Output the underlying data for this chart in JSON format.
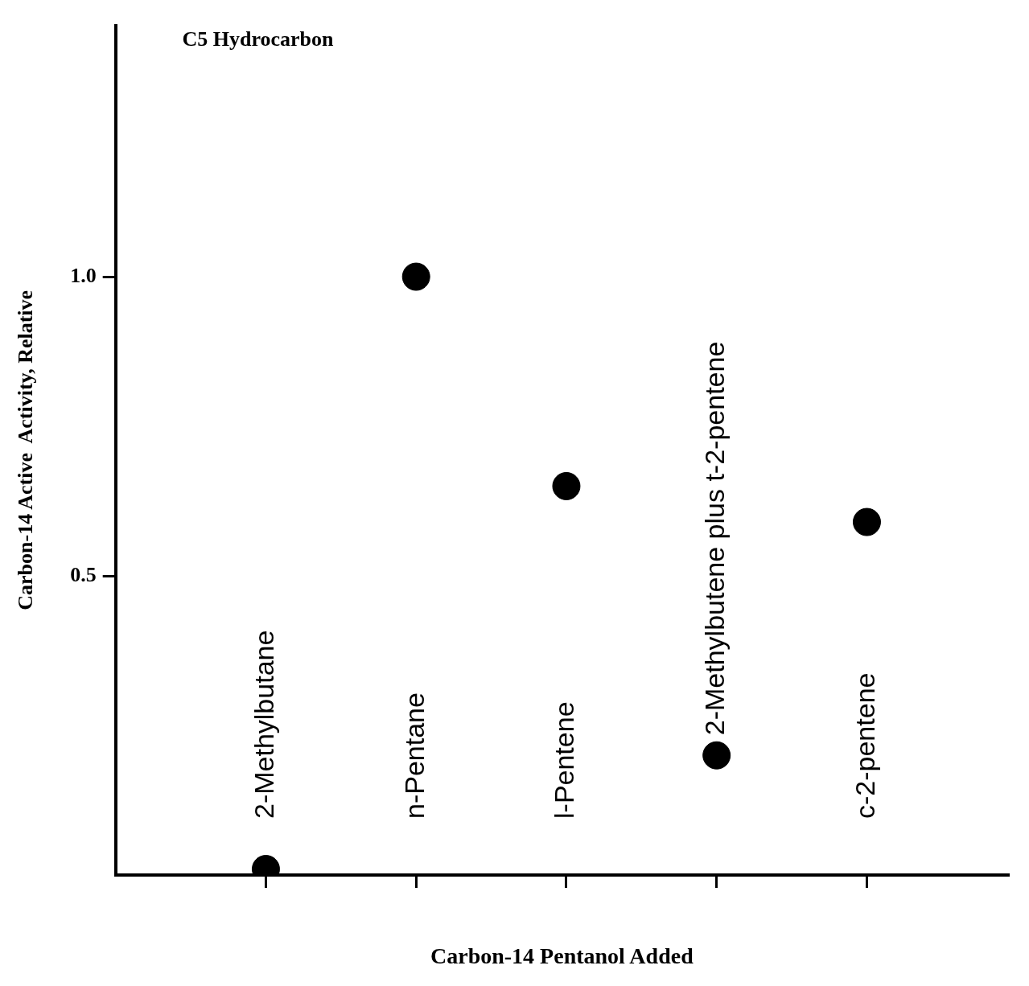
{
  "chart_data": {
    "type": "scatter",
    "title": "C5 Hydrocarbon",
    "xlabel": "Carbon-14 Pentanol Added",
    "ylabel": "Carbon-14 Active  Activity, Relative",
    "categories": [
      "2-Methylbutane",
      "n-Pentane",
      "l-Pentene",
      "2-Methylbutene plus t-2-pentene",
      "c-2-pentene"
    ],
    "series": [
      {
        "color": "#000000",
        "values": [
          0.01,
          1.0,
          0.65,
          0.2,
          0.59
        ]
      }
    ],
    "ylim": [
      0,
      1.42
    ],
    "yticks": [
      {
        "value": 0.5,
        "label": "0.5"
      },
      {
        "value": 1,
        "label": "1.0"
      }
    ],
    "marker": "circle",
    "grid": false,
    "legend": false
  }
}
